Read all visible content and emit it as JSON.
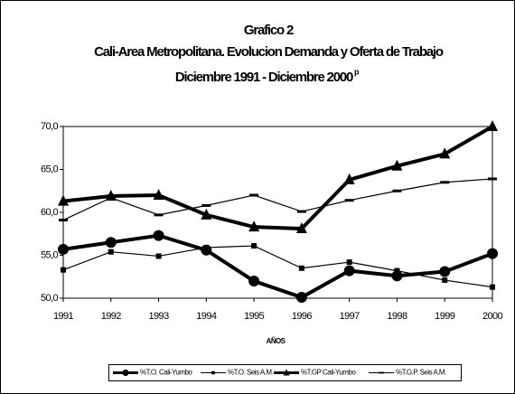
{
  "chart_data": {
    "type": "line",
    "title": [
      "Grafico 2",
      "Cali-Area Metropolitana. Evolucion Demanda y Oferta de Trabajo",
      "Diciembre 1991 - Diciembre 2000"
    ],
    "title_note": "p",
    "xlabel": "AÑOS",
    "categories": [
      "1991",
      "1992",
      "1993",
      "1994",
      "1995",
      "1996",
      "1997",
      "1998",
      "1999",
      "2000"
    ],
    "ylim": [
      50,
      70
    ],
    "yticks": [
      {
        "value": 50,
        "label": "50,0"
      },
      {
        "value": 55,
        "label": "55,0"
      },
      {
        "value": 60,
        "label": "60,0"
      },
      {
        "value": 65,
        "label": "65,0"
      },
      {
        "value": 70,
        "label": "70,0"
      }
    ],
    "legend": "bottom",
    "series": [
      {
        "name": "%T.O. Cali-Yumbo",
        "color": "#000000",
        "marker": "circle",
        "line_width": 4,
        "values": [
          55.7,
          56.5,
          57.3,
          55.6,
          52.0,
          50.1,
          53.2,
          52.6,
          53.1,
          55.2
        ]
      },
      {
        "name": "%T.O. Seis A.M.",
        "color": "#000000",
        "marker": "square",
        "line_width": 1.2,
        "values": [
          53.3,
          55.4,
          54.9,
          55.9,
          56.1,
          53.5,
          54.2,
          53.2,
          52.1,
          51.3
        ]
      },
      {
        "name": "%T.GP Cali-Yumbo",
        "color": "#000000",
        "marker": "triangle",
        "line_width": 4,
        "values": [
          61.3,
          61.9,
          62.0,
          59.7,
          58.3,
          58.1,
          63.8,
          65.4,
          66.8,
          70.0
        ]
      },
      {
        "name": "%T.G.P. Seis A.M.",
        "color": "#000000",
        "marker": "dash",
        "line_width": 1.2,
        "values": [
          59.1,
          61.7,
          59.7,
          60.8,
          62.0,
          60.1,
          61.4,
          62.5,
          63.5,
          63.9
        ]
      }
    ]
  }
}
